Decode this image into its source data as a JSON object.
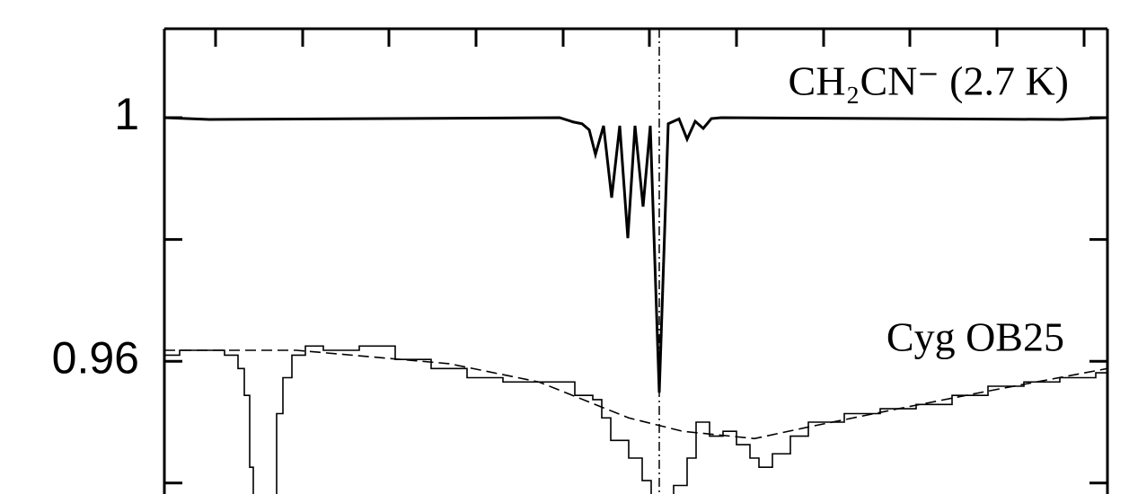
{
  "chart_data": {
    "type": "line",
    "xlim": [
      0,
      1050
    ],
    "xticks": [
      {
        "value": 57,
        "label": null
      },
      {
        "value": 154,
        "label": null
      },
      {
        "value": 250,
        "label": null
      },
      {
        "value": 347,
        "label": null
      },
      {
        "value": 444,
        "label": null
      },
      {
        "value": 540,
        "label": null
      },
      {
        "value": 637,
        "label": null
      },
      {
        "value": 734,
        "label": null
      },
      {
        "value": 830,
        "label": null
      },
      {
        "value": 927,
        "label": null
      },
      {
        "value": 1024,
        "label": null
      }
    ],
    "ylim": [
      0.9382,
      1.0146
    ],
    "yticks": [
      {
        "value": 0.94,
        "label": null
      },
      0.96,
      {
        "value": 0.98,
        "label": null
      },
      1
    ],
    "vline": 551,
    "series": [
      {
        "name": "CH₂CN⁻ (2.7 K)",
        "style": "solid",
        "color": "#000000",
        "x": [
          0,
          50,
          440,
          455,
          465,
          473,
          480,
          489,
          498,
          507,
          516,
          524,
          533,
          541,
          551,
          561,
          573,
          582,
          591,
          600,
          609,
          620,
          1000,
          1050
        ],
        "values": [
          1,
          0.9997,
          1,
          0.9993,
          0.999,
          0.998,
          0.99395,
          0.99867,
          0.98686,
          0.99867,
          0.98022,
          0.99867,
          0.98539,
          0.99867,
          0.95483,
          0.999,
          0.9998,
          0.99646,
          0.9994,
          0.99823,
          0.99985,
          1,
          0.9997,
          1
        ]
      },
      {
        "name": "Cyg OB25",
        "style": "step",
        "color": "#000000",
        "x": [
          0,
          17,
          37,
          67,
          82,
          89,
          95,
          99,
          117,
          125,
          132,
          142,
          157,
          177,
          217,
          257,
          297,
          337,
          377,
          417,
          457,
          477,
          487,
          497,
          517,
          532,
          542,
          557,
          567,
          582,
          592,
          607,
          622,
          637,
          652,
          662,
          677,
          697,
          717,
          757,
          797,
          837,
          877,
          917,
          957,
          997,
          1037,
          1050
        ],
        "values": [
          0.961,
          0.9618,
          0.9618,
          0.961,
          0.9588,
          0.9544,
          0.9426,
          0.937,
          0.937,
          0.9514,
          0.9573,
          0.961,
          0.9625,
          0.9618,
          0.9625,
          0.9603,
          0.9588,
          0.9573,
          0.9566,
          0.9566,
          0.9544,
          0.9537,
          0.9507,
          0.947,
          0.9441,
          0.9404,
          0.9375,
          0.9375,
          0.9396,
          0.9441,
          0.95,
          0.9477,
          0.9485,
          0.9463,
          0.9441,
          0.9426,
          0.9448,
          0.9477,
          0.95,
          0.9514,
          0.9522,
          0.9529,
          0.9544,
          0.9559,
          0.9566,
          0.9573,
          0.9581,
          0.9581
        ]
      },
      {
        "style": "dashed",
        "color": "#000000",
        "x": [
          0,
          147,
          317,
          417,
          517,
          577,
          657,
          717,
          817,
          917,
          1050
        ],
        "values": [
          0.9618,
          0.9618,
          0.9596,
          0.9566,
          0.9507,
          0.9485,
          0.9473,
          0.9492,
          0.9522,
          0.9551,
          0.9588
        ]
      }
    ]
  }
}
